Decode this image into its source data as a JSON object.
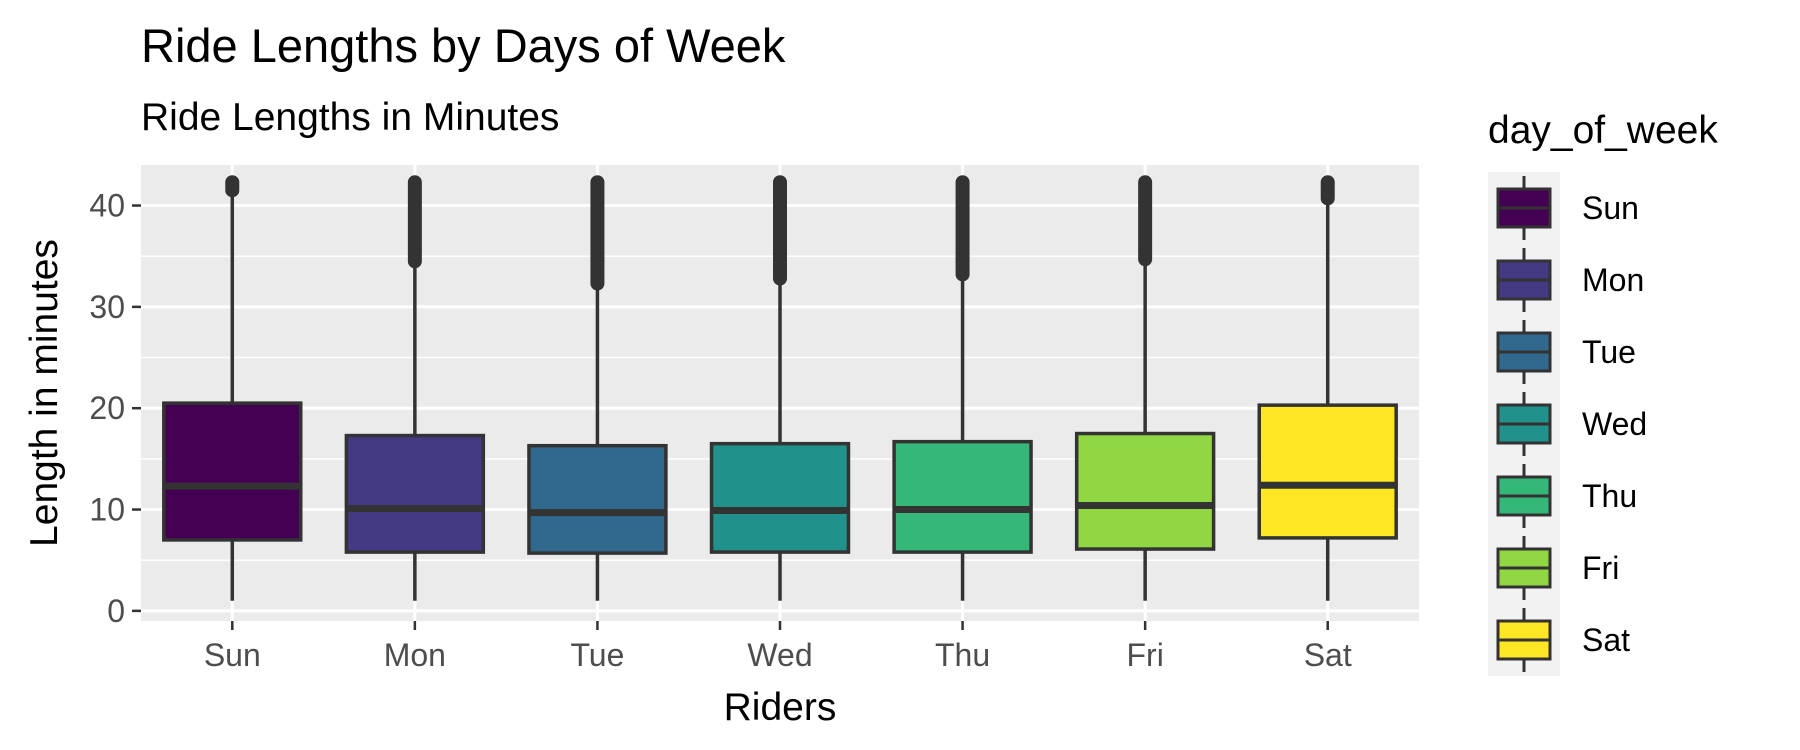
{
  "chart_data": {
    "type": "boxplot",
    "title": "Ride Lengths by Days of Week",
    "subtitle": "Ride Lengths in Minutes",
    "xlabel": "Riders",
    "ylabel": "Length in minutes",
    "categories": [
      "Sun",
      "Mon",
      "Tue",
      "Wed",
      "Thu",
      "Fri",
      "Sat"
    ],
    "ylim": [
      -1,
      44
    ],
    "yticks": [
      0,
      10,
      20,
      30,
      40
    ],
    "grid": true,
    "legend": {
      "title": "day_of_week",
      "placement": "right"
    },
    "colors": [
      "#440154",
      "#443983",
      "#31688e",
      "#21918c",
      "#35b779",
      "#90d743",
      "#fde725"
    ],
    "boxes": [
      {
        "label": "Sun",
        "whisker_low": 1,
        "q1": 7,
        "median": 12.3,
        "q3": 20.5,
        "whisker_high": 41.5,
        "outliers_from": 41.5,
        "outliers_to": 42.3
      },
      {
        "label": "Mon",
        "whisker_low": 1,
        "q1": 5.8,
        "median": 10.1,
        "q3": 17.3,
        "whisker_high": 34.5,
        "outliers_from": 34.5,
        "outliers_to": 42.3
      },
      {
        "label": "Tue",
        "whisker_low": 1,
        "q1": 5.7,
        "median": 9.7,
        "q3": 16.3,
        "whisker_high": 32.3,
        "outliers_from": 32.3,
        "outliers_to": 42.3
      },
      {
        "label": "Wed",
        "whisker_low": 1,
        "q1": 5.8,
        "median": 9.9,
        "q3": 16.5,
        "whisker_high": 32.8,
        "outliers_from": 32.8,
        "outliers_to": 42.3
      },
      {
        "label": "Thu",
        "whisker_low": 1,
        "q1": 5.8,
        "median": 10,
        "q3": 16.7,
        "whisker_high": 33.2,
        "outliers_from": 33.2,
        "outliers_to": 42.3
      },
      {
        "label": "Fri",
        "whisker_low": 1,
        "q1": 6.1,
        "median": 10.4,
        "q3": 17.5,
        "whisker_high": 34.7,
        "outliers_from": 34.7,
        "outliers_to": 42.3
      },
      {
        "label": "Sat",
        "whisker_low": 1,
        "q1": 7.2,
        "median": 12.4,
        "q3": 20.3,
        "whisker_high": 40.7,
        "outliers_from": 40.7,
        "outliers_to": 42.3
      }
    ]
  }
}
